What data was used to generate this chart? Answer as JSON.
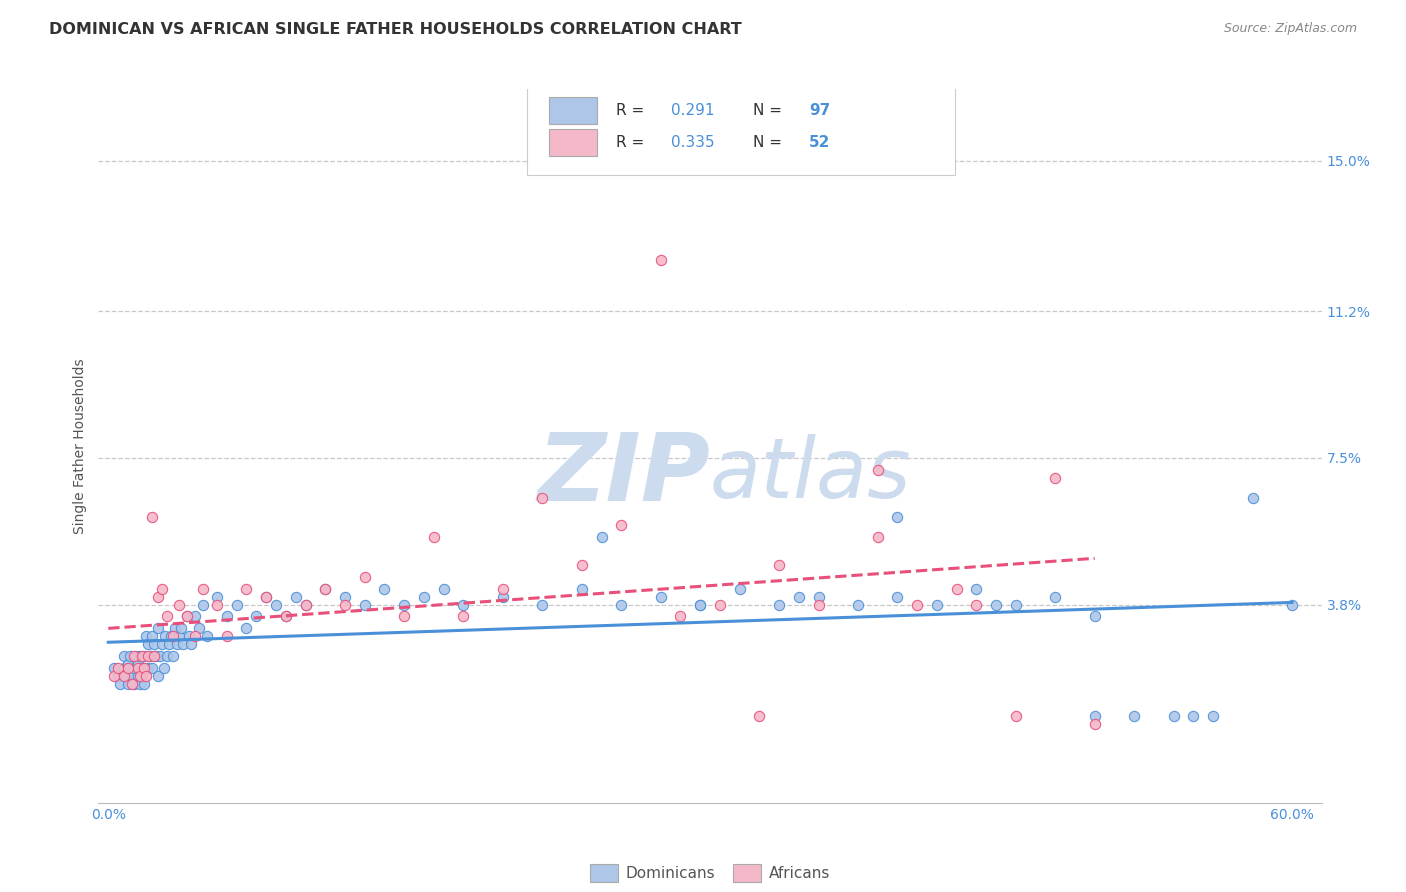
{
  "title": "DOMINICAN VS AFRICAN SINGLE FATHER HOUSEHOLDS CORRELATION CHART",
  "source": "Source: ZipAtlas.com",
  "ylabel": "Single Father Households",
  "ytick_labels": [
    "15.0%",
    "11.2%",
    "7.5%",
    "3.8%"
  ],
  "ytick_values": [
    0.15,
    0.112,
    0.075,
    0.038
  ],
  "xlim": [
    -0.005,
    0.615
  ],
  "ylim": [
    -0.012,
    0.168
  ],
  "dominican_color": "#aec6e8",
  "african_color": "#f5b8c8",
  "dominican_line_color": "#4a90d9",
  "african_line_color": "#e8507a",
  "watermark_color": "#dce8f0",
  "R_dominican": 0.291,
  "N_dominican": 97,
  "R_african": 0.335,
  "N_african": 52,
  "dom_x": [
    0.003,
    0.005,
    0.006,
    0.008,
    0.008,
    0.009,
    0.01,
    0.01,
    0.011,
    0.012,
    0.013,
    0.013,
    0.014,
    0.015,
    0.015,
    0.016,
    0.016,
    0.017,
    0.017,
    0.018,
    0.018,
    0.019,
    0.02,
    0.02,
    0.021,
    0.022,
    0.022,
    0.023,
    0.024,
    0.025,
    0.025,
    0.026,
    0.027,
    0.028,
    0.029,
    0.03,
    0.031,
    0.032,
    0.033,
    0.034,
    0.035,
    0.036,
    0.037,
    0.038,
    0.04,
    0.041,
    0.042,
    0.044,
    0.046,
    0.048,
    0.05,
    0.055,
    0.06,
    0.065,
    0.07,
    0.075,
    0.08,
    0.085,
    0.09,
    0.095,
    0.1,
    0.11,
    0.12,
    0.13,
    0.14,
    0.15,
    0.16,
    0.17,
    0.18,
    0.2,
    0.22,
    0.24,
    0.26,
    0.28,
    0.3,
    0.32,
    0.34,
    0.36,
    0.38,
    0.4,
    0.42,
    0.44,
    0.46,
    0.48,
    0.5,
    0.52,
    0.54,
    0.56,
    0.58,
    0.6,
    0.25,
    0.3,
    0.35,
    0.4,
    0.45,
    0.5,
    0.55
  ],
  "dom_y": [
    0.022,
    0.02,
    0.018,
    0.025,
    0.022,
    0.02,
    0.023,
    0.018,
    0.025,
    0.02,
    0.022,
    0.018,
    0.025,
    0.02,
    0.023,
    0.018,
    0.025,
    0.022,
    0.02,
    0.025,
    0.018,
    0.03,
    0.028,
    0.022,
    0.025,
    0.03,
    0.022,
    0.028,
    0.025,
    0.032,
    0.02,
    0.025,
    0.028,
    0.022,
    0.03,
    0.025,
    0.028,
    0.03,
    0.025,
    0.032,
    0.028,
    0.03,
    0.032,
    0.028,
    0.035,
    0.03,
    0.028,
    0.035,
    0.032,
    0.038,
    0.03,
    0.04,
    0.035,
    0.038,
    0.032,
    0.035,
    0.04,
    0.038,
    0.035,
    0.04,
    0.038,
    0.042,
    0.04,
    0.038,
    0.042,
    0.038,
    0.04,
    0.042,
    0.038,
    0.04,
    0.038,
    0.042,
    0.038,
    0.04,
    0.038,
    0.042,
    0.038,
    0.04,
    0.038,
    0.04,
    0.038,
    0.042,
    0.038,
    0.04,
    0.035,
    0.01,
    0.01,
    0.01,
    0.065,
    0.038,
    0.055,
    0.038,
    0.04,
    0.06,
    0.038,
    0.01,
    0.01
  ],
  "afr_x": [
    0.003,
    0.005,
    0.008,
    0.01,
    0.012,
    0.013,
    0.015,
    0.016,
    0.017,
    0.018,
    0.019,
    0.02,
    0.022,
    0.023,
    0.025,
    0.027,
    0.03,
    0.033,
    0.036,
    0.04,
    0.044,
    0.048,
    0.055,
    0.06,
    0.07,
    0.08,
    0.09,
    0.1,
    0.11,
    0.12,
    0.13,
    0.15,
    0.165,
    0.18,
    0.2,
    0.22,
    0.24,
    0.26,
    0.29,
    0.31,
    0.34,
    0.36,
    0.39,
    0.41,
    0.44,
    0.46,
    0.39,
    0.43,
    0.48,
    0.33,
    0.5,
    0.28
  ],
  "afr_y": [
    0.02,
    0.022,
    0.02,
    0.022,
    0.018,
    0.025,
    0.022,
    0.02,
    0.025,
    0.022,
    0.02,
    0.025,
    0.06,
    0.025,
    0.04,
    0.042,
    0.035,
    0.03,
    0.038,
    0.035,
    0.03,
    0.042,
    0.038,
    0.03,
    0.042,
    0.04,
    0.035,
    0.038,
    0.042,
    0.038,
    0.045,
    0.035,
    0.055,
    0.035,
    0.042,
    0.065,
    0.048,
    0.058,
    0.035,
    0.038,
    0.048,
    0.038,
    0.055,
    0.038,
    0.038,
    0.01,
    0.072,
    0.042,
    0.07,
    0.01,
    0.008,
    0.125
  ]
}
